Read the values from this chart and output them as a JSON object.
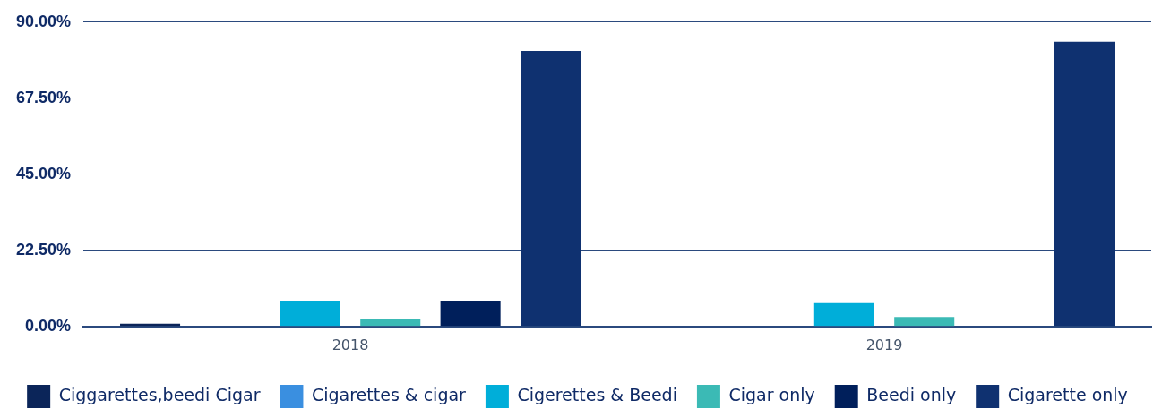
{
  "chart_data": {
    "type": "bar",
    "categories": [
      "2018",
      "2019"
    ],
    "series": [
      {
        "name": "Ciggarettes,beedi Cigar",
        "color": "#0b2559",
        "values": [
          0.8,
          0
        ]
      },
      {
        "name": "Cigarettes & cigar",
        "color": "#3a8fe0",
        "values": [
          0,
          0
        ]
      },
      {
        "name": "Cigerettes & Beedi",
        "color": "#00aed9",
        "values": [
          7.6,
          6.9
        ]
      },
      {
        "name": "Cigar only",
        "color": "#3bbab5",
        "values": [
          2.3,
          2.8
        ]
      },
      {
        "name": "Beedi only",
        "color": "#001f5b",
        "values": [
          7.6,
          0
        ]
      },
      {
        "name": "Cigarette only",
        "color": "#0f3170",
        "values": [
          81.5,
          84.2
        ]
      }
    ],
    "ylim": [
      0,
      90
    ],
    "yticks": [
      {
        "value": 0,
        "label": "0.00%"
      },
      {
        "value": 22.5,
        "label": "22.50%"
      },
      {
        "value": 45,
        "label": "45.00%"
      },
      {
        "value": 67.5,
        "label": "67.50%"
      },
      {
        "value": 90,
        "label": "90.00%"
      }
    ],
    "grid": "y",
    "legend": "bottom"
  }
}
